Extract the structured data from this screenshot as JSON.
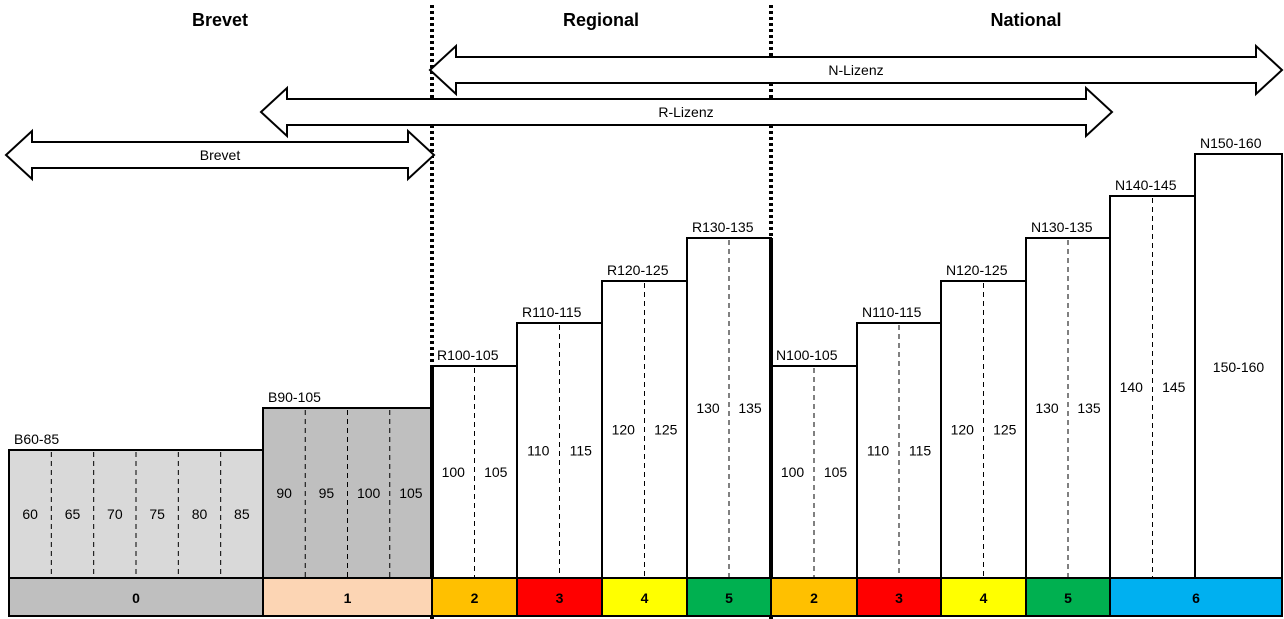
{
  "sections": [
    "Brevet",
    "Regional",
    "National"
  ],
  "arrows": [
    "N-Lizenz",
    "R-Lizenz",
    "Brevet"
  ],
  "blocks": [
    {
      "label": "B60-85",
      "heights": [
        "60",
        "65",
        "70",
        "75",
        "80",
        "85"
      ],
      "fill": "#d9d9d9",
      "level": "0"
    },
    {
      "label": "B90-105",
      "heights": [
        "90",
        "95",
        "100",
        "105"
      ],
      "fill": "#bfbfbf",
      "level": "1"
    },
    {
      "label": "R100-105",
      "heights": [
        "100",
        "105"
      ],
      "fill": "#ffffff",
      "level": "2"
    },
    {
      "label": "R110-115",
      "heights": [
        "110",
        "115"
      ],
      "fill": "#ffffff",
      "level": "3"
    },
    {
      "label": "R120-125",
      "heights": [
        "120",
        "125"
      ],
      "fill": "#ffffff",
      "level": "4"
    },
    {
      "label": "R130-135",
      "heights": [
        "130",
        "135"
      ],
      "fill": "#ffffff",
      "level": "5"
    },
    {
      "label": "N100-105",
      "heights": [
        "100",
        "105"
      ],
      "fill": "#ffffff",
      "level": "2"
    },
    {
      "label": "N110-115",
      "heights": [
        "110",
        "115"
      ],
      "fill": "#ffffff",
      "level": "3"
    },
    {
      "label": "N120-125",
      "heights": [
        "120",
        "125"
      ],
      "fill": "#ffffff",
      "level": "4"
    },
    {
      "label": "N130-135",
      "heights": [
        "130",
        "135"
      ],
      "fill": "#ffffff",
      "level": "5"
    },
    {
      "label": "N140-145",
      "heights": [
        "140",
        "145"
      ],
      "fill": "#ffffff",
      "level": "6"
    },
    {
      "label": "N150-160",
      "heights": [
        "150-160"
      ],
      "fill": "#ffffff",
      "level": "6"
    }
  ],
  "levels": [
    {
      "label": "0",
      "color": "#bfbfbf"
    },
    {
      "label": "1",
      "color": "#fcd5b4"
    },
    {
      "label": "2",
      "color": "#ffc000"
    },
    {
      "label": "3",
      "color": "#ff0000"
    },
    {
      "label": "4",
      "color": "#ffff00"
    },
    {
      "label": "5",
      "color": "#00b050"
    },
    {
      "label": "2",
      "color": "#ffc000"
    },
    {
      "label": "3",
      "color": "#ff0000"
    },
    {
      "label": "4",
      "color": "#ffff00"
    },
    {
      "label": "5",
      "color": "#00b050"
    },
    {
      "label": "6",
      "color": "#00b0f0"
    }
  ]
}
